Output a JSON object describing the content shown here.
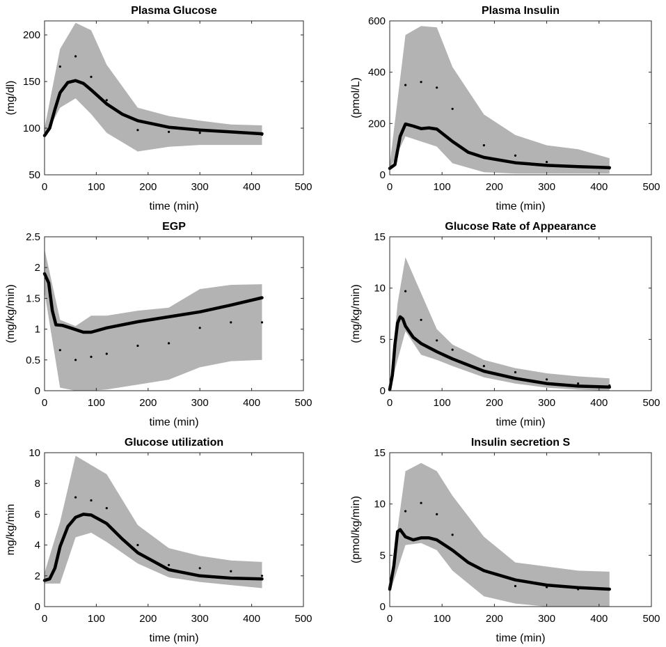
{
  "chart_data": [
    {
      "type": "line",
      "title": "Plasma Glucose",
      "xlabel": "time (min)",
      "ylabel": "(mg/dl)",
      "xlim": [
        0,
        500
      ],
      "ylim": [
        50,
        215
      ],
      "xticks": [
        0,
        100,
        200,
        300,
        400,
        500
      ],
      "yticks": [
        50,
        100,
        150,
        200
      ],
      "band_upper": [
        [
          0,
          100
        ],
        [
          30,
          185
        ],
        [
          60,
          213
        ],
        [
          90,
          205
        ],
        [
          120,
          168
        ],
        [
          180,
          122
        ],
        [
          240,
          113
        ],
        [
          300,
          108
        ],
        [
          360,
          104
        ],
        [
          420,
          103
        ]
      ],
      "band_lower": [
        [
          0,
          90
        ],
        [
          30,
          122
        ],
        [
          60,
          132
        ],
        [
          90,
          115
        ],
        [
          120,
          95
        ],
        [
          180,
          75
        ],
        [
          240,
          80
        ],
        [
          300,
          82
        ],
        [
          360,
          82
        ],
        [
          420,
          82
        ]
      ],
      "mean": [
        [
          0,
          92
        ],
        [
          10,
          100
        ],
        [
          20,
          120
        ],
        [
          30,
          138
        ],
        [
          45,
          149
        ],
        [
          60,
          151
        ],
        [
          75,
          148
        ],
        [
          90,
          141
        ],
        [
          120,
          126
        ],
        [
          150,
          115
        ],
        [
          180,
          108
        ],
        [
          240,
          101
        ],
        [
          300,
          98
        ],
        [
          360,
          96
        ],
        [
          420,
          94
        ]
      ],
      "points": [
        [
          0,
          92
        ],
        [
          30,
          166
        ],
        [
          60,
          177
        ],
        [
          90,
          155
        ],
        [
          120,
          130
        ],
        [
          180,
          98
        ],
        [
          240,
          96
        ],
        [
          300,
          95
        ],
        [
          420,
          93
        ]
      ]
    },
    {
      "type": "line",
      "title": "Plasma Insulin",
      "xlabel": "time (min)",
      "ylabel": "(pmol/L)",
      "xlim": [
        0,
        500
      ],
      "ylim": [
        0,
        600
      ],
      "xticks": [
        0,
        100,
        200,
        300,
        400,
        500
      ],
      "yticks": [
        0,
        200,
        400,
        600
      ],
      "band_upper": [
        [
          0,
          40
        ],
        [
          30,
          545
        ],
        [
          60,
          580
        ],
        [
          90,
          575
        ],
        [
          120,
          420
        ],
        [
          180,
          235
        ],
        [
          240,
          155
        ],
        [
          300,
          115
        ],
        [
          360,
          100
        ],
        [
          420,
          65
        ]
      ],
      "band_lower": [
        [
          0,
          20
        ],
        [
          30,
          150
        ],
        [
          60,
          130
        ],
        [
          90,
          110
        ],
        [
          120,
          45
        ],
        [
          180,
          10
        ],
        [
          240,
          5
        ],
        [
          300,
          5
        ],
        [
          360,
          5
        ],
        [
          420,
          5
        ]
      ],
      "mean": [
        [
          0,
          25
        ],
        [
          10,
          40
        ],
        [
          20,
          150
        ],
        [
          30,
          198
        ],
        [
          45,
          190
        ],
        [
          60,
          180
        ],
        [
          75,
          183
        ],
        [
          90,
          178
        ],
        [
          120,
          130
        ],
        [
          150,
          88
        ],
        [
          180,
          68
        ],
        [
          240,
          47
        ],
        [
          300,
          37
        ],
        [
          360,
          32
        ],
        [
          420,
          28
        ]
      ],
      "points": [
        [
          0,
          25
        ],
        [
          30,
          350
        ],
        [
          60,
          362
        ],
        [
          90,
          340
        ],
        [
          120,
          257
        ],
        [
          180,
          115
        ],
        [
          240,
          75
        ],
        [
          300,
          50
        ],
        [
          420,
          25
        ]
      ]
    },
    {
      "type": "line",
      "title": "EGP",
      "xlabel": "time (min)",
      "ylabel": "(mg/kg/min)",
      "xlim": [
        0,
        500
      ],
      "ylim": [
        0,
        2.5
      ],
      "xticks": [
        0,
        100,
        200,
        300,
        400,
        500
      ],
      "yticks": [
        0,
        0.5,
        1,
        1.5,
        2,
        2.5
      ],
      "band_upper": [
        [
          0,
          2.3
        ],
        [
          30,
          1.15
        ],
        [
          60,
          1.05
        ],
        [
          90,
          1.22
        ],
        [
          120,
          1.22
        ],
        [
          180,
          1.3
        ],
        [
          240,
          1.35
        ],
        [
          300,
          1.65
        ],
        [
          360,
          1.72
        ],
        [
          420,
          1.73
        ]
      ],
      "band_lower": [
        [
          0,
          1.6
        ],
        [
          30,
          0.05
        ],
        [
          60,
          0.0
        ],
        [
          90,
          0.0
        ],
        [
          120,
          0.02
        ],
        [
          180,
          0.1
        ],
        [
          240,
          0.18
        ],
        [
          300,
          0.38
        ],
        [
          360,
          0.48
        ],
        [
          420,
          0.5
        ]
      ],
      "mean": [
        [
          0,
          1.9
        ],
        [
          8,
          1.75
        ],
        [
          15,
          1.3
        ],
        [
          22,
          1.07
        ],
        [
          35,
          1.06
        ],
        [
          50,
          1.02
        ],
        [
          75,
          0.95
        ],
        [
          90,
          0.95
        ],
        [
          120,
          1.02
        ],
        [
          180,
          1.12
        ],
        [
          240,
          1.2
        ],
        [
          300,
          1.28
        ],
        [
          360,
          1.39
        ],
        [
          420,
          1.51
        ]
      ],
      "points": [
        [
          30,
          0.66
        ],
        [
          60,
          0.5
        ],
        [
          90,
          0.55
        ],
        [
          120,
          0.6
        ],
        [
          180,
          0.73
        ],
        [
          240,
          0.77
        ],
        [
          300,
          1.02
        ],
        [
          360,
          1.11
        ],
        [
          420,
          1.11
        ]
      ]
    },
    {
      "type": "line",
      "title": "Glucose Rate of Appearance",
      "xlabel": "time (min)",
      "ylabel": "(mg/kg/min)",
      "xlim": [
        0,
        500
      ],
      "ylim": [
        0,
        15
      ],
      "xticks": [
        0,
        100,
        200,
        300,
        400,
        500
      ],
      "yticks": [
        0,
        5,
        10,
        15
      ],
      "band_upper": [
        [
          0,
          0.3
        ],
        [
          15,
          8.5
        ],
        [
          30,
          13.0
        ],
        [
          60,
          9.5
        ],
        [
          90,
          6.0
        ],
        [
          120,
          4.5
        ],
        [
          180,
          3.0
        ],
        [
          240,
          2.2
        ],
        [
          300,
          1.7
        ],
        [
          360,
          1.4
        ],
        [
          420,
          1.2
        ]
      ],
      "band_lower": [
        [
          0,
          0.0
        ],
        [
          15,
          3.0
        ],
        [
          30,
          5.8
        ],
        [
          60,
          3.5
        ],
        [
          90,
          3.0
        ],
        [
          120,
          2.4
        ],
        [
          180,
          1.3
        ],
        [
          240,
          0.7
        ],
        [
          300,
          0.3
        ],
        [
          360,
          0.1
        ],
        [
          420,
          0.0
        ]
      ],
      "mean": [
        [
          0,
          0.1
        ],
        [
          5,
          1.5
        ],
        [
          10,
          4.5
        ],
        [
          15,
          6.6
        ],
        [
          20,
          7.2
        ],
        [
          25,
          7.0
        ],
        [
          30,
          6.3
        ],
        [
          45,
          5.2
        ],
        [
          60,
          4.6
        ],
        [
          90,
          3.8
        ],
        [
          120,
          3.1
        ],
        [
          180,
          1.9
        ],
        [
          240,
          1.2
        ],
        [
          300,
          0.7
        ],
        [
          360,
          0.45
        ],
        [
          420,
          0.35
        ]
      ],
      "points": [
        [
          30,
          9.7
        ],
        [
          60,
          6.9
        ],
        [
          90,
          4.9
        ],
        [
          120,
          4.0
        ],
        [
          180,
          2.4
        ],
        [
          240,
          1.8
        ],
        [
          300,
          1.1
        ],
        [
          360,
          0.7
        ],
        [
          420,
          0.5
        ]
      ]
    },
    {
      "type": "line",
      "title": "Glucose utilization",
      "xlabel": "time (min)",
      "ylabel": "mg/kg/min",
      "xlim": [
        0,
        500
      ],
      "ylim": [
        0,
        10
      ],
      "xticks": [
        0,
        100,
        200,
        300,
        400,
        500
      ],
      "yticks": [
        0,
        2,
        4,
        6,
        8,
        10
      ],
      "band_upper": [
        [
          0,
          2.2
        ],
        [
          30,
          5.5
        ],
        [
          60,
          9.8
        ],
        [
          90,
          9.2
        ],
        [
          120,
          8.6
        ],
        [
          180,
          5.3
        ],
        [
          240,
          3.8
        ],
        [
          300,
          3.3
        ],
        [
          360,
          3.0
        ],
        [
          420,
          2.9
        ]
      ],
      "band_lower": [
        [
          0,
          1.5
        ],
        [
          30,
          1.5
        ],
        [
          60,
          4.5
        ],
        [
          90,
          4.8
        ],
        [
          120,
          4.2
        ],
        [
          180,
          2.8
        ],
        [
          240,
          1.9
        ],
        [
          300,
          1.6
        ],
        [
          360,
          1.4
        ],
        [
          420,
          1.2
        ]
      ],
      "mean": [
        [
          0,
          1.7
        ],
        [
          10,
          1.8
        ],
        [
          20,
          2.5
        ],
        [
          30,
          3.9
        ],
        [
          45,
          5.2
        ],
        [
          60,
          5.8
        ],
        [
          75,
          6.0
        ],
        [
          90,
          5.95
        ],
        [
          120,
          5.4
        ],
        [
          150,
          4.4
        ],
        [
          180,
          3.5
        ],
        [
          240,
          2.4
        ],
        [
          300,
          2.0
        ],
        [
          360,
          1.85
        ],
        [
          420,
          1.8
        ]
      ],
      "points": [
        [
          60,
          7.1
        ],
        [
          90,
          6.9
        ],
        [
          120,
          6.4
        ],
        [
          180,
          4.0
        ],
        [
          240,
          2.7
        ],
        [
          300,
          2.5
        ],
        [
          360,
          2.3
        ],
        [
          420,
          2.0
        ]
      ]
    },
    {
      "type": "line",
      "title": "Insulin secretion S",
      "xlabel": "time (min)",
      "ylabel": "(pmol/kg/min)",
      "xlim": [
        0,
        500
      ],
      "ylim": [
        0,
        15
      ],
      "xticks": [
        0,
        100,
        200,
        300,
        400,
        500
      ],
      "yticks": [
        0,
        5,
        10,
        15
      ],
      "band_upper": [
        [
          0,
          2.0
        ],
        [
          30,
          13.2
        ],
        [
          60,
          14.0
        ],
        [
          90,
          13.2
        ],
        [
          120,
          10.8
        ],
        [
          180,
          6.8
        ],
        [
          240,
          4.3
        ],
        [
          300,
          3.9
        ],
        [
          360,
          3.5
        ],
        [
          420,
          3.4
        ]
      ],
      "band_lower": [
        [
          0,
          1.3
        ],
        [
          30,
          6.0
        ],
        [
          60,
          6.2
        ],
        [
          90,
          5.5
        ],
        [
          120,
          3.5
        ],
        [
          180,
          1.0
        ],
        [
          240,
          0.3
        ],
        [
          300,
          0.0
        ],
        [
          360,
          0.0
        ],
        [
          420,
          0.0
        ]
      ],
      "mean": [
        [
          0,
          1.7
        ],
        [
          8,
          4.0
        ],
        [
          15,
          7.3
        ],
        [
          20,
          7.5
        ],
        [
          30,
          6.8
        ],
        [
          45,
          6.5
        ],
        [
          60,
          6.7
        ],
        [
          75,
          6.7
        ],
        [
          90,
          6.5
        ],
        [
          120,
          5.5
        ],
        [
          150,
          4.3
        ],
        [
          180,
          3.5
        ],
        [
          240,
          2.6
        ],
        [
          300,
          2.1
        ],
        [
          360,
          1.85
        ],
        [
          420,
          1.7
        ]
      ],
      "points": [
        [
          30,
          9.3
        ],
        [
          60,
          10.1
        ],
        [
          90,
          9.0
        ],
        [
          120,
          7.0
        ],
        [
          240,
          2.0
        ],
        [
          300,
          1.9
        ],
        [
          360,
          1.7
        ]
      ]
    }
  ]
}
